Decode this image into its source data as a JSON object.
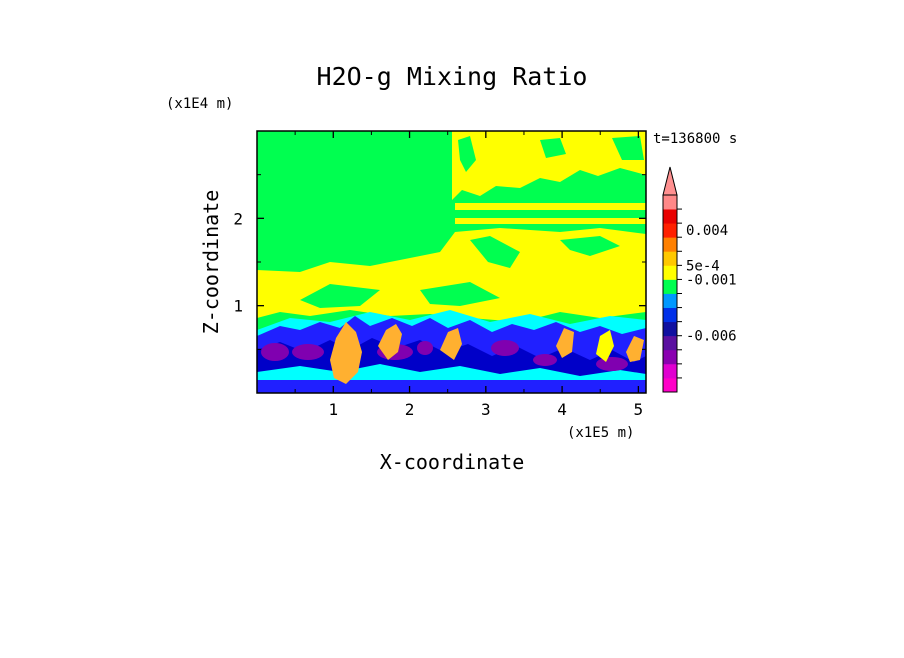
{
  "chart_data": {
    "type": "heatmap",
    "title": "H2O-g Mixing Ratio",
    "xlabel": "X-coordinate",
    "ylabel": "Z-coordinate",
    "x_scale_label": "(x1E5 m)",
    "y_scale_label": "(x1E4 m)",
    "time_label": "t=136800 s",
    "xlim": [
      0,
      5.1
    ],
    "ylim": [
      0,
      3.0
    ],
    "x_ticks": [
      {
        "value": 1,
        "label": "1"
      },
      {
        "value": 2,
        "label": "2"
      },
      {
        "value": 3,
        "label": "3"
      },
      {
        "value": 4,
        "label": "4"
      },
      {
        "value": 5,
        "label": "5"
      }
    ],
    "y_ticks": [
      {
        "value": 1,
        "label": "1"
      },
      {
        "value": 2,
        "label": "2"
      }
    ],
    "colorbar": {
      "levels": [
        {
          "color": "#ff00c8"
        },
        {
          "color": "#e000d0"
        },
        {
          "color": "#8a00b0"
        },
        {
          "color": "#5a10a0"
        },
        {
          "color": "#1010a0"
        },
        {
          "color": "#0030e8"
        },
        {
          "color": "#0098ff"
        },
        {
          "color": "#00ff50"
        },
        {
          "color": "#ffff00"
        },
        {
          "color": "#ffc800"
        },
        {
          "color": "#ff8000"
        },
        {
          "color": "#ff2000"
        },
        {
          "color": "#e80000"
        },
        {
          "color": "#ff8888"
        }
      ],
      "overflow_color": "#ff9090",
      "labels": [
        {
          "level": 11.5,
          "text": "0.004"
        },
        {
          "level": 9.0,
          "text": "5e-4"
        },
        {
          "level": 8.0,
          "text": "-0.001"
        },
        {
          "level": 4.0,
          "text": "-0.006"
        }
      ]
    },
    "colors": {
      "background_field": "#00ff50",
      "moist": "#ffff00",
      "cyan": "#00ffff",
      "orange": "#ffb030",
      "blue": "#2020ff",
      "deep_blue": "#0000c8",
      "purple": "#8000b0"
    }
  }
}
